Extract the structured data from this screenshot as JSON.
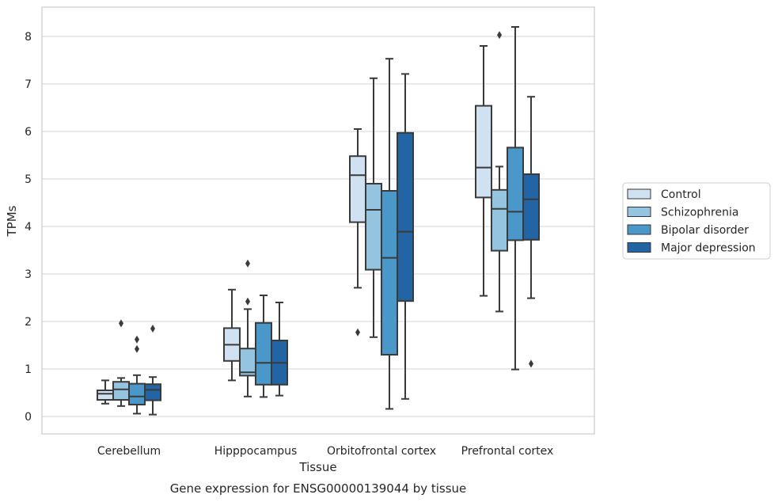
{
  "chart_data": {
    "type": "box",
    "title": "",
    "caption": "Gene expression for ENSG00000139044 by tissue",
    "xlabel": "Tissue",
    "ylabel": "TPMs",
    "ylim": [
      -0.35,
      8.6
    ],
    "yticks": [
      0,
      1,
      2,
      3,
      4,
      5,
      6,
      7,
      8
    ],
    "grid": "horizontal",
    "legend_position": "right",
    "categories": [
      "Cerebellum",
      "Hipppocampus",
      "Orbitofrontal cortex",
      "Prefrontal cortex"
    ],
    "series": [
      {
        "name": "Control",
        "color": "#d0e1f2",
        "boxes": [
          {
            "whislo": 0.27,
            "q1": 0.35,
            "med": 0.48,
            "q3": 0.55,
            "whishi": 0.76,
            "fliers": []
          },
          {
            "whislo": 0.76,
            "q1": 1.17,
            "med": 1.51,
            "q3": 1.86,
            "whishi": 2.67,
            "fliers": []
          },
          {
            "whislo": 2.71,
            "q1": 4.09,
            "med": 5.08,
            "q3": 5.48,
            "whishi": 6.05,
            "fliers": [
              1.77
            ]
          },
          {
            "whislo": 2.54,
            "q1": 4.61,
            "med": 5.24,
            "q3": 6.54,
            "whishi": 7.8,
            "fliers": []
          }
        ]
      },
      {
        "name": "Schizophrenia",
        "color": "#94c4df",
        "boxes": [
          {
            "whislo": 0.22,
            "q1": 0.35,
            "med": 0.57,
            "q3": 0.73,
            "whishi": 0.81,
            "fliers": [
              1.96
            ]
          },
          {
            "whislo": 0.42,
            "q1": 0.86,
            "med": 0.93,
            "q3": 1.43,
            "whishi": 2.26,
            "fliers": [
              2.42,
              3.22
            ]
          },
          {
            "whislo": 1.67,
            "q1": 3.09,
            "med": 4.35,
            "q3": 4.9,
            "whishi": 7.12,
            "fliers": []
          },
          {
            "whislo": 2.21,
            "q1": 3.49,
            "med": 4.37,
            "q3": 4.77,
            "whishi": 5.26,
            "fliers": [
              8.03
            ]
          }
        ]
      },
      {
        "name": "Bipolar disorder",
        "color": "#4a98c9",
        "boxes": [
          {
            "whislo": 0.06,
            "q1": 0.25,
            "med": 0.42,
            "q3": 0.69,
            "whishi": 0.87,
            "fliers": [
              1.42,
              1.62
            ]
          },
          {
            "whislo": 0.41,
            "q1": 0.67,
            "med": 1.13,
            "q3": 1.97,
            "whishi": 2.55,
            "fliers": []
          },
          {
            "whislo": 0.16,
            "q1": 1.3,
            "med": 3.34,
            "q3": 4.75,
            "whishi": 7.53,
            "fliers": []
          },
          {
            "whislo": 0.99,
            "q1": 3.71,
            "med": 4.31,
            "q3": 5.66,
            "whishi": 8.2,
            "fliers": []
          }
        ]
      },
      {
        "name": "Major depression",
        "color": "#2264a4",
        "boxes": [
          {
            "whislo": 0.04,
            "q1": 0.34,
            "med": 0.56,
            "q3": 0.68,
            "whishi": 0.83,
            "fliers": [
              1.85
            ]
          },
          {
            "whislo": 0.44,
            "q1": 0.67,
            "med": 1.13,
            "q3": 1.6,
            "whishi": 2.4,
            "fliers": []
          },
          {
            "whislo": 0.37,
            "q1": 2.43,
            "med": 3.89,
            "q3": 5.97,
            "whishi": 7.21,
            "fliers": []
          },
          {
            "whislo": 2.49,
            "q1": 3.72,
            "med": 4.57,
            "q3": 5.1,
            "whishi": 6.73,
            "fliers": [
              1.11
            ]
          }
        ]
      }
    ]
  }
}
